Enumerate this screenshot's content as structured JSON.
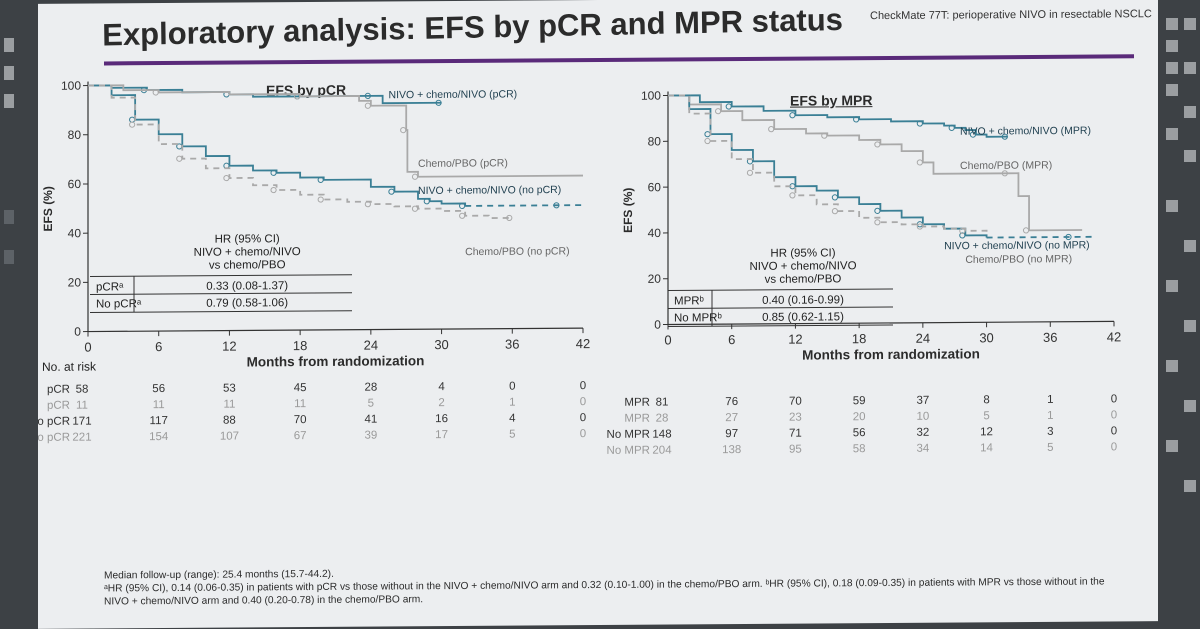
{
  "header": {
    "title": "Exploratory analysis: EFS by pCR and MPR status",
    "study_tag": "CheckMate 77T: perioperative NIVO in resectable NSCLC"
  },
  "colors": {
    "nivo": "#3a7f95",
    "pbo": "#a9a9a9",
    "axis": "#333333",
    "accent": "#5a2a7a"
  },
  "chart_data": [
    {
      "type": "line",
      "title": "EFS by pCR",
      "xlabel": "Months from randomization",
      "ylabel": "EFS (%)",
      "xlim": [
        0,
        42
      ],
      "ylim": [
        0,
        100
      ],
      "xticks": [
        0,
        6,
        12,
        18,
        24,
        30,
        36,
        42
      ],
      "yticks": [
        0,
        20,
        40,
        60,
        80,
        100
      ],
      "series": [
        {
          "name": "NIVO + chemo/NIVO (pCR)",
          "color": "#3a7f95",
          "dash": false,
          "points": [
            [
              0,
              100
            ],
            [
              2,
              99
            ],
            [
              5,
              98
            ],
            [
              8,
              97
            ],
            [
              12,
              96
            ],
            [
              14,
              95
            ],
            [
              18,
              95
            ],
            [
              21,
              95
            ],
            [
              24,
              95
            ],
            [
              25,
              92
            ],
            [
              30,
              92
            ]
          ]
        },
        {
          "name": "Chemo/PBO (pCR)",
          "color": "#a9a9a9",
          "dash": false,
          "points": [
            [
              0,
              100
            ],
            [
              3,
              98
            ],
            [
              6,
              97
            ],
            [
              12,
              96
            ],
            [
              18,
              95
            ],
            [
              23,
              93
            ],
            [
              24,
              91
            ],
            [
              26,
              91
            ],
            [
              27,
              81
            ],
            [
              27.1,
              64
            ],
            [
              28,
              62
            ],
            [
              42,
              62
            ]
          ]
        },
        {
          "name": "NIVO + chemo/NIVO (no pCR)",
          "color": "#3a7f95",
          "dash": false,
          "points": [
            [
              0,
              100
            ],
            [
              2,
              96
            ],
            [
              4,
              86
            ],
            [
              6,
              80
            ],
            [
              8,
              75
            ],
            [
              10,
              71
            ],
            [
              12,
              67
            ],
            [
              14,
              65
            ],
            [
              16,
              64
            ],
            [
              18,
              62
            ],
            [
              20,
              61
            ],
            [
              24,
              58
            ],
            [
              26,
              56
            ],
            [
              28,
              53
            ],
            [
              29,
              52
            ],
            [
              30,
              51
            ],
            [
              32,
              50
            ]
          ]
        },
        {
          "name": "NIVO + chemo/NIVO (no pCR) tail",
          "color": "#3a7f95",
          "dash": true,
          "points": [
            [
              32,
              50
            ],
            [
              36,
              50
            ],
            [
              40,
              50
            ],
            [
              42,
              50
            ]
          ]
        },
        {
          "name": "Chemo/PBO (no pCR)",
          "color": "#a9a9a9",
          "dash": true,
          "points": [
            [
              0,
              100
            ],
            [
              2,
              95
            ],
            [
              4,
              84
            ],
            [
              6,
              76
            ],
            [
              8,
              70
            ],
            [
              10,
              66
            ],
            [
              12,
              62
            ],
            [
              14,
              59
            ],
            [
              16,
              57
            ],
            [
              18,
              55
            ],
            [
              20,
              53
            ],
            [
              22,
              52
            ],
            [
              24,
              51
            ],
            [
              26,
              50
            ],
            [
              28,
              49
            ],
            [
              30,
              48
            ],
            [
              32,
              46
            ],
            [
              34,
              45
            ],
            [
              36,
              45
            ]
          ]
        }
      ],
      "labels": [
        {
          "text": "NIVO + chemo/NIVO (pCR)",
          "x": 25.5,
          "y": 94
        },
        {
          "text": "Chemo/PBO (pCR)",
          "x": 28,
          "y": 66
        },
        {
          "text": "NIVO + chemo/NIVO (no pCR)",
          "x": 28,
          "y": 55
        },
        {
          "text": "Chemo/PBO (no pCR)",
          "x": 32,
          "y": 30
        }
      ],
      "hr_table": {
        "header": [
          "HR (95% CI)",
          "NIVO + chemo/NIVO",
          "vs chemo/PBO"
        ],
        "rows": [
          {
            "label": "pCRᵃ",
            "value": "0.33 (0.08-1.37)"
          },
          {
            "label": "No pCRᵃ",
            "value": "0.79 (0.58-1.06)"
          }
        ]
      },
      "risk_table": {
        "title": "No. at risk",
        "rows": [
          {
            "label": "pCR",
            "color": "#3a7f95",
            "values": [
              "58",
              "56",
              "53",
              "45",
              "28",
              "4",
              "0",
              "0"
            ]
          },
          {
            "label": "pCR",
            "color": "#a9a9a9",
            "values": [
              "11",
              "11",
              "11",
              "11",
              "5",
              "2",
              "1",
              "0"
            ]
          },
          {
            "label": "No pCR",
            "color": "#3a7f95",
            "values": [
              "171",
              "117",
              "88",
              "70",
              "41",
              "16",
              "4",
              "0"
            ]
          },
          {
            "label": "No pCR",
            "color": "#a9a9a9",
            "values": [
              "221",
              "154",
              "107",
              "67",
              "39",
              "17",
              "5",
              "0"
            ]
          }
        ]
      }
    },
    {
      "type": "line",
      "title": "EFS by MPR",
      "xlabel": "Months from randomization",
      "ylabel": "EFS (%)",
      "xlim": [
        0,
        42
      ],
      "ylim": [
        0,
        100
      ],
      "xticks": [
        0,
        6,
        12,
        18,
        24,
        30,
        36,
        42
      ],
      "yticks": [
        0,
        20,
        40,
        60,
        80,
        100
      ],
      "series": [
        {
          "name": "NIVO + chemo/NIVO (MPR)",
          "color": "#3a7f95",
          "dash": false,
          "points": [
            [
              0,
              100
            ],
            [
              3,
              97
            ],
            [
              6,
              95
            ],
            [
              9,
              93
            ],
            [
              12,
              91
            ],
            [
              15,
              90
            ],
            [
              18,
              89
            ],
            [
              21,
              88
            ],
            [
              24,
              87
            ],
            [
              26,
              86
            ],
            [
              27,
              85
            ],
            [
              28,
              84
            ],
            [
              29,
              82
            ],
            [
              30,
              81
            ],
            [
              32,
              81
            ]
          ]
        },
        {
          "name": "Chemo/PBO (MPR)",
          "color": "#a9a9a9",
          "dash": false,
          "points": [
            [
              0,
              100
            ],
            [
              2,
              96
            ],
            [
              5,
              93
            ],
            [
              7,
              89
            ],
            [
              10,
              85
            ],
            [
              13,
              83
            ],
            [
              15,
              82
            ],
            [
              18,
              80
            ],
            [
              20,
              78
            ],
            [
              22,
              75
            ],
            [
              24,
              70
            ],
            [
              25,
              65
            ],
            [
              32,
              65
            ],
            [
              33,
              55
            ],
            [
              34,
              40
            ],
            [
              39,
              40
            ]
          ]
        },
        {
          "name": "NIVO + chemo/NIVO (no MPR)",
          "color": "#3a7f95",
          "dash": false,
          "points": [
            [
              0,
              100
            ],
            [
              2,
              94
            ],
            [
              4,
              83
            ],
            [
              6,
              76
            ],
            [
              8,
              71
            ],
            [
              10,
              64
            ],
            [
              12,
              60
            ],
            [
              14,
              58
            ],
            [
              16,
              55
            ],
            [
              18,
              52
            ],
            [
              20,
              49
            ],
            [
              22,
              46
            ],
            [
              24,
              43
            ],
            [
              26,
              41
            ],
            [
              28,
              38
            ],
            [
              30,
              37
            ]
          ]
        },
        {
          "name": "NIVO + chemo/NIVO (no MPR) tail",
          "color": "#3a7f95",
          "dash": true,
          "points": [
            [
              30,
              37
            ],
            [
              34,
              37
            ],
            [
              38,
              37
            ],
            [
              40,
              37
            ]
          ]
        },
        {
          "name": "Chemo/PBO (no MPR)",
          "color": "#a9a9a9",
          "dash": true,
          "points": [
            [
              0,
              100
            ],
            [
              2,
              92
            ],
            [
              4,
              80
            ],
            [
              6,
              72
            ],
            [
              8,
              66
            ],
            [
              10,
              60
            ],
            [
              12,
              56
            ],
            [
              14,
              52
            ],
            [
              16,
              49
            ],
            [
              18,
              46
            ],
            [
              20,
              44
            ],
            [
              22,
              43
            ],
            [
              24,
              42
            ],
            [
              26,
              41
            ],
            [
              28,
              40
            ],
            [
              30,
              38
            ]
          ]
        }
      ],
      "labels": [
        {
          "text": "NIVO + chemo/NIVO (MPR)",
          "x": 27.5,
          "y": 82
        },
        {
          "text": "Chemo/PBO (MPR)",
          "x": 27.5,
          "y": 67
        },
        {
          "text": "NIVO + chemo/NIVO (no MPR)",
          "x": 26,
          "y": 32
        },
        {
          "text": "Chemo/PBO (no MPR)",
          "x": 28,
          "y": 26
        }
      ],
      "hr_table": {
        "header": [
          "HR (95% CI)",
          "NIVO + chemo/NIVO",
          "vs chemo/PBO"
        ],
        "rows": [
          {
            "label": "MPRᵇ",
            "value": "0.40 (0.16-0.99)"
          },
          {
            "label": "No MPRᵇ",
            "value": "0.85 (0.62-1.15)"
          }
        ]
      },
      "risk_table": {
        "title": "",
        "rows": [
          {
            "label": "MPR",
            "color": "#3a7f95",
            "values": [
              "81",
              "76",
              "70",
              "59",
              "37",
              "8",
              "1",
              "0"
            ]
          },
          {
            "label": "MPR",
            "color": "#a9a9a9",
            "values": [
              "28",
              "27",
              "23",
              "20",
              "10",
              "5",
              "1",
              "0"
            ]
          },
          {
            "label": "No MPR",
            "color": "#3a7f95",
            "values": [
              "148",
              "97",
              "71",
              "56",
              "32",
              "12",
              "3",
              "0"
            ]
          },
          {
            "label": "No MPR",
            "color": "#a9a9a9",
            "values": [
              "204",
              "138",
              "95",
              "58",
              "34",
              "14",
              "5",
              "0"
            ]
          }
        ]
      }
    }
  ],
  "footnotes": [
    "Median follow-up (range): 25.4 months (15.7-44.2).",
    "ᵃHR (95% CI), 0.14 (0.06-0.35) in patients with pCR vs those without in the NIVO + chemo/NIVO arm and 0.32 (0.10-1.00) in the chemo/PBO arm. ᵇHR (95% CI), 0.18 (0.09-0.35) in patients with MPR vs those without in the",
    "NIVO + chemo/NIVO arm and 0.40 (0.20-0.78) in the chemo/PBO arm."
  ]
}
